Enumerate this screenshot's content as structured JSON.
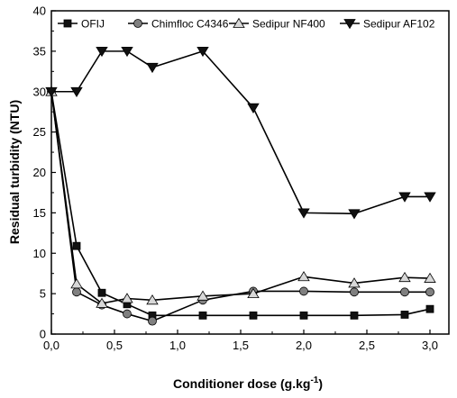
{
  "chart_data": {
    "type": "line",
    "xlabel": "Conditioner dose (g.kg",
    "xlabel_sup": "-1",
    "xlabel_end": ")",
    "ylabel": "Residual turbidity (NTU)",
    "xlim": [
      0,
      3.15
    ],
    "ylim": [
      0,
      40
    ],
    "x_ticks": [
      0,
      0.5,
      1.0,
      1.5,
      2.0,
      2.5,
      3.0
    ],
    "x_tick_labels": [
      "0,0",
      "0,5",
      "1,0",
      "1,5",
      "2,0",
      "2,5",
      "3,0"
    ],
    "y_ticks": [
      0,
      5,
      10,
      15,
      20,
      25,
      30,
      35,
      40
    ],
    "y_tick_labels": [
      "0",
      "5",
      "10",
      "15",
      "20",
      "25",
      "30",
      "35",
      "40"
    ],
    "grid": false,
    "legend_position": "top",
    "series": [
      {
        "name": "OFIJ",
        "marker": "square",
        "fill": "#111111",
        "x": [
          0,
          0.2,
          0.4,
          0.6,
          0.8,
          1.2,
          1.6,
          2.0,
          2.4,
          2.8,
          3.0
        ],
        "y": [
          30,
          10.9,
          5.1,
          3.7,
          2.3,
          2.3,
          2.3,
          2.3,
          2.3,
          2.4,
          3.1
        ]
      },
      {
        "name": "Chimfloc C4346",
        "marker": "circle",
        "fill": "#808080",
        "x": [
          0,
          0.2,
          0.4,
          0.6,
          0.8,
          1.2,
          1.6,
          2.0,
          2.4,
          2.8,
          3.0
        ],
        "y": [
          30,
          5.2,
          3.6,
          2.5,
          1.6,
          4.2,
          5.3,
          5.3,
          5.2,
          5.2,
          5.2
        ]
      },
      {
        "name": "Sedipur NF400",
        "marker": "triangle-up",
        "fill": "#d8d8d8",
        "x": [
          0,
          0.2,
          0.4,
          0.6,
          0.8,
          1.2,
          1.6,
          2.0,
          2.4,
          2.8,
          3.0
        ],
        "y": [
          30,
          6.2,
          3.8,
          4.4,
          4.2,
          4.7,
          5.0,
          7.1,
          6.3,
          7.0,
          6.9
        ]
      },
      {
        "name": "Sedipur AF102",
        "marker": "triangle-down",
        "fill": "#111111",
        "x": [
          0,
          0.2,
          0.4,
          0.6,
          0.8,
          1.2,
          1.6,
          2.0,
          2.4,
          2.8,
          3.0
        ],
        "y": [
          30,
          30,
          35,
          35,
          33,
          35,
          28,
          15,
          14.9,
          17,
          17
        ]
      }
    ]
  }
}
